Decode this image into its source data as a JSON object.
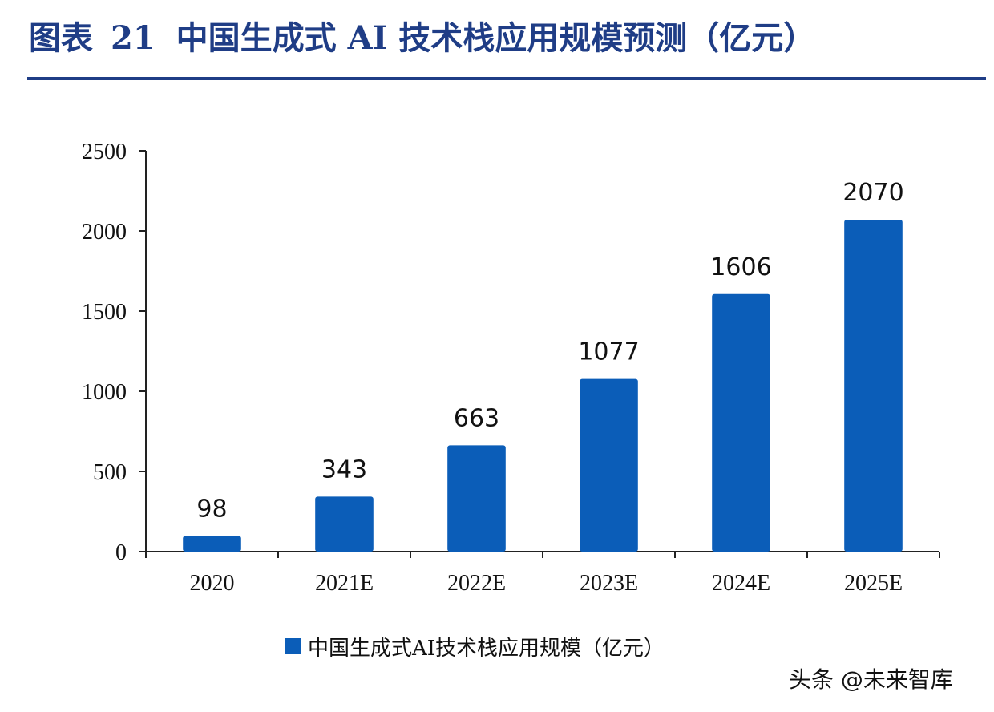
{
  "header": {
    "figure_label": "图表",
    "figure_number": "21",
    "title": "中国生成式 AI 技术栈应用规模预测（亿元）"
  },
  "chart_data": {
    "type": "bar",
    "categories": [
      "2020",
      "2021E",
      "2022E",
      "2023E",
      "2024E",
      "2025E"
    ],
    "series": [
      {
        "name": "中国生成式AI技术栈应用规模（亿元）",
        "values": [
          98,
          343,
          663,
          1077,
          1606,
          2070
        ],
        "color": "#0b5db8"
      }
    ],
    "ylim": [
      0,
      2500
    ],
    "yticks": [
      0,
      500,
      1000,
      1500,
      2000,
      2500
    ],
    "data_labels": [
      "98",
      "343",
      "663",
      "1077",
      "1606",
      "2070"
    ],
    "grid": false,
    "legend_position": "bottom-center"
  },
  "legend": {
    "label": "中国生成式AI技术栈应用规模（亿元）"
  },
  "watermark": {
    "text": "头条 @未来智库"
  }
}
